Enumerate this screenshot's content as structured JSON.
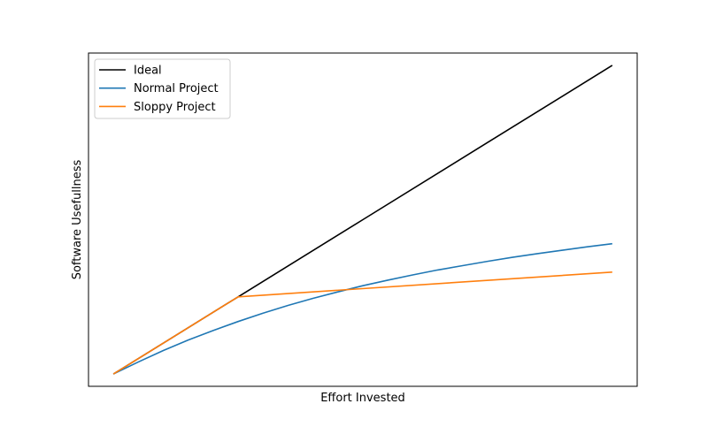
{
  "chart_data": {
    "type": "line",
    "xlabel": "Effort Invested",
    "ylabel": "Software Usefullness",
    "xlim": [
      -0.05,
      1.05
    ],
    "ylim": [
      -0.04,
      1.04
    ],
    "x_ticks_shown": false,
    "y_ticks_shown": false,
    "grid": false,
    "legend_position": "top-left",
    "series": [
      {
        "name": "Ideal",
        "color": "#000000",
        "x": [
          0,
          0.25,
          0.5,
          0.75,
          1.0
        ],
        "y": [
          0,
          0.25,
          0.5,
          0.75,
          1.0
        ]
      },
      {
        "name": "Normal Project",
        "color": "#1f77b4",
        "x": [
          0,
          0.05,
          0.1,
          0.15,
          0.2,
          0.25,
          0.3,
          0.35,
          0.4,
          0.45,
          0.5,
          0.55,
          0.6,
          0.65,
          0.7,
          0.75,
          0.8,
          0.85,
          0.9,
          0.95,
          1.0
        ],
        "y": [
          0,
          0.039,
          0.076,
          0.11,
          0.141,
          0.17,
          0.197,
          0.222,
          0.245,
          0.266,
          0.286,
          0.304,
          0.321,
          0.337,
          0.351,
          0.365,
          0.378,
          0.39,
          0.401,
          0.412,
          0.422
        ]
      },
      {
        "name": "Sloppy Project",
        "color": "#ff7f0e",
        "x": [
          0,
          0.25,
          1.0
        ],
        "y": [
          0,
          0.25,
          0.33
        ]
      }
    ]
  }
}
